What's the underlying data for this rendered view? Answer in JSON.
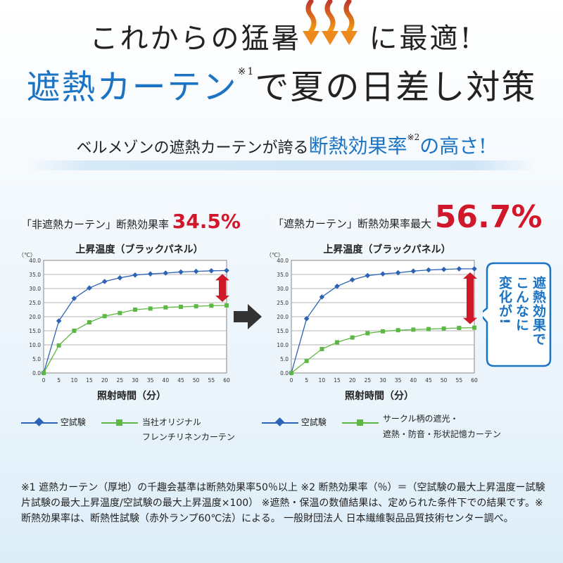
{
  "headline": {
    "line1_left": "これからの猛暑",
    "line1_right": "に最適!",
    "line2_blue": "遮熱カーテン",
    "line2_mark": "※1",
    "line2_dark": "で夏の日差し対策"
  },
  "subline": {
    "prefix": "ベルメゾンの遮熱カーテンが誇る",
    "highlight": "断熱効果率",
    "mark": "※2",
    "suffix": "の高さ!"
  },
  "chart_data": [
    {
      "type": "line",
      "label": "「非遮熱カーテン」断熱効果率",
      "efficiency": "34.5%",
      "title": "上昇温度（ブラックパネル）",
      "unit": "（℃）",
      "xlabel": "照射時間（分）",
      "x": [
        0,
        5,
        10,
        15,
        20,
        25,
        30,
        35,
        40,
        45,
        50,
        55,
        60
      ],
      "yticks": [
        "0.0",
        "5.0",
        "10.0",
        "15.0",
        "20.0",
        "25.0",
        "30.0",
        "35.0",
        "40.0"
      ],
      "ylim": [
        0,
        40
      ],
      "grid": true,
      "series": [
        {
          "name": "空試験",
          "color": "#2d63b5",
          "marker": "diamond",
          "values": [
            0,
            18.5,
            26.5,
            30.2,
            32.5,
            33.8,
            34.8,
            35.2,
            35.5,
            35.9,
            36.1,
            36.3,
            36.4
          ]
        },
        {
          "name": "当社オリジナル\nフレンチリネンカーテン",
          "color": "#5db843",
          "marker": "square",
          "values": [
            0,
            9.8,
            15,
            18,
            20.2,
            21.3,
            22.5,
            22.9,
            23.3,
            23.5,
            23.7,
            23.9,
            24.0
          ]
        }
      ]
    },
    {
      "type": "line",
      "label": "「遮熱カーテン」断熱効果率最大",
      "efficiency": "56.7%",
      "title": "上昇温度（ブラックパネル）",
      "unit": "（℃）",
      "xlabel": "照射時間（分）",
      "x": [
        0,
        5,
        10,
        15,
        20,
        25,
        30,
        35,
        40,
        45,
        50,
        55,
        60
      ],
      "yticks": [
        "0.0",
        "5.0",
        "10.0",
        "15.0",
        "20.0",
        "25.0",
        "30.0",
        "35.0",
        "40.0"
      ],
      "ylim": [
        0,
        40
      ],
      "grid": true,
      "series": [
        {
          "name": "空試験",
          "color": "#2d63b5",
          "marker": "diamond",
          "values": [
            0,
            19.3,
            27,
            30.8,
            33.1,
            34.6,
            35.2,
            35.6,
            36.2,
            36.6,
            36.8,
            37.0,
            37.0
          ]
        },
        {
          "name": "サークル柄の遮光・\n遮熱・防音・形状記憶カーテン",
          "color": "#5db843",
          "marker": "square",
          "values": [
            0,
            4.3,
            8.5,
            10.9,
            12.6,
            14.1,
            14.8,
            15.2,
            15.4,
            15.6,
            15.8,
            16.0,
            16.1
          ]
        }
      ]
    }
  ],
  "callout": {
    "col1": "遮熱効果で",
    "col2": "こんなに",
    "col3": "変化が!"
  },
  "footnote": "※1 遮熱カーテン（厚地）の千趣会基準は断熱効果率50％以上 ※2 断熱効果率（％）＝（空試験の最大上昇温度ー試験片試験の最大上昇温度/空試験の最大上昇温度×100） ※遮熱・保温の数値結果は、定められた条件下での結果です。※断熱効果率は、断熱性試験（赤外ランプ60℃法）による。 一般財団法人 日本繊維製品品質技術センター調べ。",
  "colors": {
    "accent": "#1a73c3",
    "red": "#d0182a",
    "blue_series": "#2d63b5",
    "green_series": "#5db843"
  }
}
